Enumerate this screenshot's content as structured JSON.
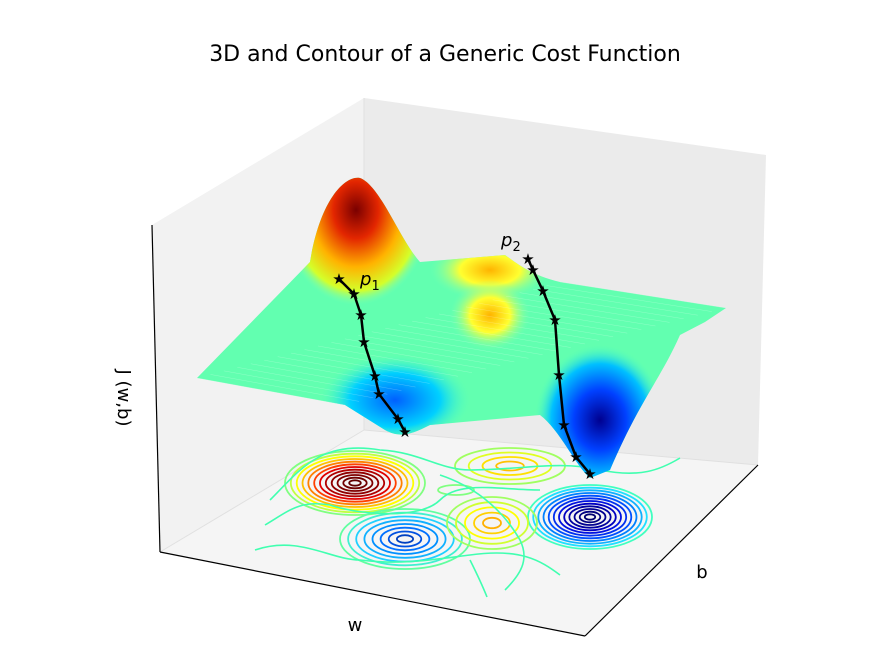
{
  "chart_data": {
    "type": "surface3d",
    "title": "3D and Contour of a Generic Cost Function",
    "xlabel": "w",
    "ylabel": "b",
    "zlabel": "J (w,b)",
    "colormap": "jet",
    "grid": false,
    "tick_labels_shown": false,
    "paths": [
      {
        "label": "p",
        "subscript": "1",
        "marker": "star",
        "color": "#000000",
        "points": 10
      },
      {
        "label": "p",
        "subscript": "2",
        "marker": "star",
        "color": "#000000",
        "points": 10
      }
    ]
  }
}
